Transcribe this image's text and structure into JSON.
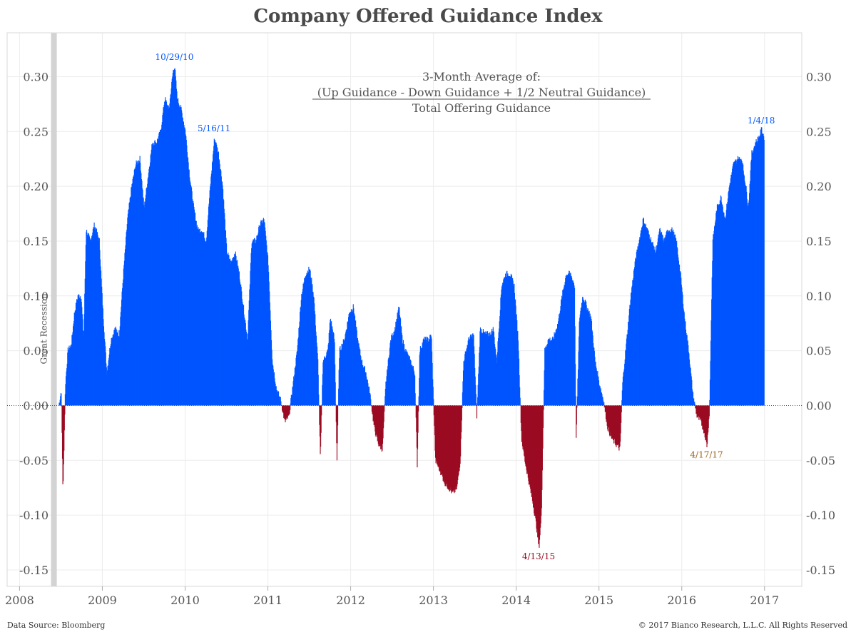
{
  "title": "Company Offered Guidance Index",
  "footer": {
    "source": "Data Source: Bloomberg",
    "copyright": "© 2017 Bianco Research, L.L.C. All Rights Reserved"
  },
  "colors": {
    "positive": "#0055ff",
    "negative": "#9b0b22",
    "recession": "#d3d3d3",
    "note_orange": "#a0651a"
  },
  "chart_data": {
    "type": "bar",
    "title": "Company Offered Guidance Index",
    "formula": {
      "line1": "3-Month Average of:",
      "numerator": "(Up Guidance - Down Guidance + 1/2 Neutral Guidance)",
      "denominator": "Total Offering Guidance"
    },
    "ylim": [
      -0.165,
      0.34
    ],
    "y_ticks": [
      "0.30",
      "0.25",
      "0.20",
      "0.15",
      "0.10",
      "0.05",
      "0.00",
      "-0.05",
      "-0.10",
      "-0.15"
    ],
    "y_tick_values": [
      0.3,
      0.25,
      0.2,
      0.15,
      0.1,
      0.05,
      0.0,
      -0.05,
      -0.1,
      -0.15
    ],
    "x_ticks": [
      "2008",
      "2009",
      "2010",
      "2011",
      "2012",
      "2013",
      "2014",
      "2015",
      "2016",
      "2017"
    ],
    "x_tick_values": [
      2008,
      2009,
      2010,
      2011,
      2012,
      2013,
      2014,
      2015,
      2016,
      2017
    ],
    "xlim": [
      2007.85,
      2017.45
    ],
    "recession": {
      "label": "Great Recession",
      "start": 2008.38,
      "end": 2008.45
    },
    "annotations": [
      {
        "text": "10/29/10",
        "x": 2009.87,
        "y": 0.31,
        "color": "blue"
      },
      {
        "text": "5/16/11",
        "x": 2010.35,
        "y": 0.245,
        "color": "blue"
      },
      {
        "text": "1/4/18",
        "x": 2016.96,
        "y": 0.252,
        "color": "blue"
      },
      {
        "text": "4/13/15",
        "x": 2014.27,
        "y": -0.13,
        "color": "red"
      },
      {
        "text": "4/17/17",
        "x": 2016.3,
        "y": -0.037,
        "color": "orange"
      }
    ],
    "keypoints": [
      [
        2008.47,
        0.0
      ],
      [
        2008.5,
        0.014
      ],
      [
        2008.52,
        -0.08
      ],
      [
        2008.55,
        0.02
      ],
      [
        2008.58,
        0.05
      ],
      [
        2008.62,
        0.055
      ],
      [
        2008.66,
        0.085
      ],
      [
        2008.7,
        0.1
      ],
      [
        2008.74,
        0.1
      ],
      [
        2008.77,
        0.06
      ],
      [
        2008.8,
        0.16
      ],
      [
        2008.85,
        0.15
      ],
      [
        2008.9,
        0.165
      ],
      [
        2008.96,
        0.15
      ],
      [
        2009.0,
        0.09
      ],
      [
        2009.05,
        0.03
      ],
      [
        2009.1,
        0.06
      ],
      [
        2009.15,
        0.07
      ],
      [
        2009.2,
        0.065
      ],
      [
        2009.25,
        0.12
      ],
      [
        2009.3,
        0.17
      ],
      [
        2009.35,
        0.2
      ],
      [
        2009.4,
        0.22
      ],
      [
        2009.45,
        0.225
      ],
      [
        2009.5,
        0.18
      ],
      [
        2009.55,
        0.21
      ],
      [
        2009.6,
        0.24
      ],
      [
        2009.65,
        0.24
      ],
      [
        2009.7,
        0.25
      ],
      [
        2009.75,
        0.28
      ],
      [
        2009.8,
        0.27
      ],
      [
        2009.85,
        0.305
      ],
      [
        2009.87,
        0.31
      ],
      [
        2009.9,
        0.28
      ],
      [
        2009.95,
        0.27
      ],
      [
        2010.0,
        0.25
      ],
      [
        2010.05,
        0.21
      ],
      [
        2010.1,
        0.18
      ],
      [
        2010.15,
        0.16
      ],
      [
        2010.2,
        0.16
      ],
      [
        2010.25,
        0.15
      ],
      [
        2010.3,
        0.2
      ],
      [
        2010.35,
        0.244
      ],
      [
        2010.4,
        0.23
      ],
      [
        2010.45,
        0.2
      ],
      [
        2010.5,
        0.14
      ],
      [
        2010.55,
        0.13
      ],
      [
        2010.6,
        0.14
      ],
      [
        2010.65,
        0.12
      ],
      [
        2010.7,
        0.09
      ],
      [
        2010.75,
        0.06
      ],
      [
        2010.8,
        0.15
      ],
      [
        2010.85,
        0.15
      ],
      [
        2010.9,
        0.165
      ],
      [
        2010.95,
        0.17
      ],
      [
        2011.0,
        0.13
      ],
      [
        2011.05,
        0.04
      ],
      [
        2011.1,
        0.015
      ],
      [
        2011.15,
        0.005
      ],
      [
        2011.2,
        -0.015
      ],
      [
        2011.25,
        -0.01
      ],
      [
        2011.3,
        0.02
      ],
      [
        2011.35,
        0.05
      ],
      [
        2011.4,
        0.1
      ],
      [
        2011.45,
        0.12
      ],
      [
        2011.5,
        0.125
      ],
      [
        2011.55,
        0.1
      ],
      [
        2011.6,
        0.04
      ],
      [
        2011.63,
        -0.05
      ],
      [
        2011.66,
        0.04
      ],
      [
        2011.72,
        0.05
      ],
      [
        2011.75,
        0.08
      ],
      [
        2011.8,
        0.06
      ],
      [
        2011.83,
        -0.05
      ],
      [
        2011.86,
        0.05
      ],
      [
        2011.92,
        0.06
      ],
      [
        2011.98,
        0.085
      ],
      [
        2012.03,
        0.09
      ],
      [
        2012.08,
        0.06
      ],
      [
        2012.13,
        0.04
      ],
      [
        2012.18,
        0.03
      ],
      [
        2012.23,
        0.01
      ],
      [
        2012.28,
        -0.02
      ],
      [
        2012.33,
        -0.035
      ],
      [
        2012.38,
        -0.04
      ],
      [
        2012.42,
        0.02
      ],
      [
        2012.48,
        0.06
      ],
      [
        2012.53,
        0.07
      ],
      [
        2012.58,
        0.09
      ],
      [
        2012.62,
        0.06
      ],
      [
        2012.66,
        0.05
      ],
      [
        2012.72,
        0.04
      ],
      [
        2012.77,
        0.03
      ],
      [
        2012.8,
        -0.055
      ],
      [
        2012.83,
        0.05
      ],
      [
        2012.88,
        0.06
      ],
      [
        2012.94,
        0.06
      ],
      [
        2012.97,
        0.065
      ],
      [
        2013.02,
        -0.05
      ],
      [
        2013.08,
        -0.06
      ],
      [
        2013.13,
        -0.07
      ],
      [
        2013.18,
        -0.075
      ],
      [
        2013.23,
        -0.08
      ],
      [
        2013.28,
        -0.075
      ],
      [
        2013.32,
        -0.05
      ],
      [
        2013.36,
        0.04
      ],
      [
        2013.42,
        0.06
      ],
      [
        2013.48,
        0.065
      ],
      [
        2013.52,
        -0.01
      ],
      [
        2013.56,
        0.07
      ],
      [
        2013.62,
        0.065
      ],
      [
        2013.68,
        0.065
      ],
      [
        2013.72,
        0.07
      ],
      [
        2013.76,
        0.04
      ],
      [
        2013.82,
        0.11
      ],
      [
        2013.87,
        0.12
      ],
      [
        2013.92,
        0.12
      ],
      [
        2013.97,
        0.11
      ],
      [
        2014.02,
        0.06
      ],
      [
        2014.06,
        -0.03
      ],
      [
        2014.1,
        -0.05
      ],
      [
        2014.15,
        -0.07
      ],
      [
        2014.2,
        -0.09
      ],
      [
        2014.24,
        -0.11
      ],
      [
        2014.27,
        -0.13
      ],
      [
        2014.3,
        -0.1
      ],
      [
        2014.34,
        0.05
      ],
      [
        2014.38,
        0.06
      ],
      [
        2014.44,
        0.06
      ],
      [
        2014.5,
        0.075
      ],
      [
        2014.55,
        0.1
      ],
      [
        2014.6,
        0.12
      ],
      [
        2014.65,
        0.12
      ],
      [
        2014.7,
        0.11
      ],
      [
        2014.72,
        -0.03
      ],
      [
        2014.76,
        0.08
      ],
      [
        2014.8,
        0.1
      ],
      [
        2014.85,
        0.09
      ],
      [
        2014.9,
        0.08
      ],
      [
        2014.95,
        0.04
      ],
      [
        2015.0,
        0.02
      ],
      [
        2015.05,
        0.005
      ],
      [
        2015.1,
        -0.02
      ],
      [
        2015.15,
        -0.03
      ],
      [
        2015.2,
        -0.035
      ],
      [
        2015.25,
        -0.04
      ],
      [
        2015.28,
        0.02
      ],
      [
        2015.33,
        0.06
      ],
      [
        2015.38,
        0.1
      ],
      [
        2015.43,
        0.13
      ],
      [
        2015.48,
        0.15
      ],
      [
        2015.53,
        0.17
      ],
      [
        2015.58,
        0.16
      ],
      [
        2015.63,
        0.15
      ],
      [
        2015.68,
        0.14
      ],
      [
        2015.73,
        0.16
      ],
      [
        2015.78,
        0.15
      ],
      [
        2015.83,
        0.16
      ],
      [
        2015.88,
        0.16
      ],
      [
        2015.93,
        0.15
      ],
      [
        2015.98,
        0.12
      ],
      [
        2016.03,
        0.08
      ],
      [
        2016.08,
        0.05
      ],
      [
        2016.13,
        0.01
      ],
      [
        2016.18,
        -0.01
      ],
      [
        2016.23,
        -0.015
      ],
      [
        2016.27,
        -0.025
      ],
      [
        2016.3,
        -0.037
      ],
      [
        2016.33,
        -0.005
      ],
      [
        2016.37,
        0.15
      ],
      [
        2016.42,
        0.18
      ],
      [
        2016.47,
        0.19
      ],
      [
        2016.52,
        0.17
      ],
      [
        2016.57,
        0.2
      ],
      [
        2016.62,
        0.22
      ],
      [
        2016.67,
        0.225
      ],
      [
        2016.72,
        0.225
      ],
      [
        2016.77,
        0.2
      ],
      [
        2016.8,
        0.18
      ],
      [
        2016.84,
        0.23
      ],
      [
        2016.89,
        0.24
      ],
      [
        2016.93,
        0.245
      ],
      [
        2016.96,
        0.252
      ],
      [
        2016.99,
        0.245
      ]
    ],
    "xlabel": "",
    "ylabel": ""
  }
}
